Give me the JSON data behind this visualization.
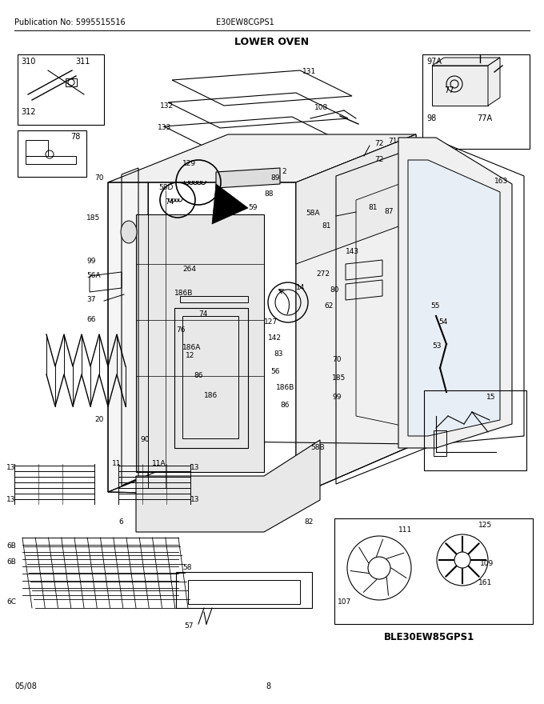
{
  "title": "LOWER OVEN",
  "pub_no": "Publication No: 5995515516",
  "model": "E30EW8CGPS1",
  "date": "05/08",
  "page": "8",
  "bottom_model": "BLE30EW85GPS1",
  "bg_color": "#ffffff",
  "line_color": "#000000",
  "fig_width": 6.8,
  "fig_height": 8.8,
  "dpi": 100
}
